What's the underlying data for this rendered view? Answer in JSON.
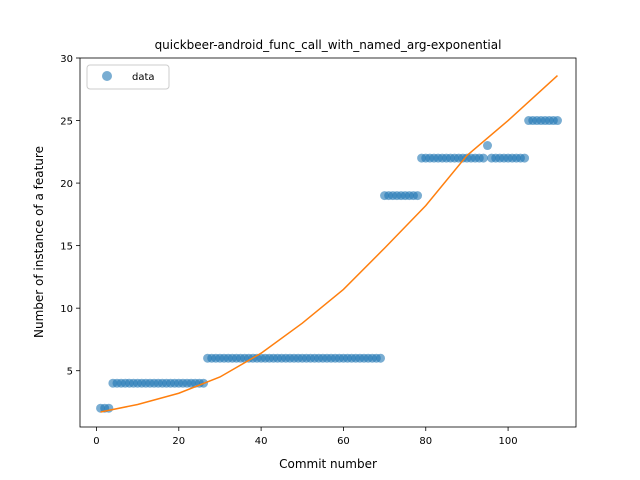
{
  "chart_data": {
    "type": "scatter",
    "title": "quickbeer-android_func_call_with_named_arg-exponential",
    "xlabel": "Commit number",
    "ylabel": "Number of instance of a feature",
    "xlim": [
      -4,
      116.5
    ],
    "ylim": [
      0.5,
      30
    ],
    "xticks": [
      0,
      20,
      40,
      60,
      80,
      100
    ],
    "yticks": [
      5,
      10,
      15,
      20,
      25,
      30
    ],
    "legend": {
      "position": "top-left",
      "entries": [
        "data"
      ]
    },
    "colors": {
      "points": "#1f77b4",
      "fit": "#ff7f0e"
    },
    "series": [
      {
        "name": "data",
        "kind": "scatter",
        "points": [
          [
            1,
            2
          ],
          [
            2,
            2
          ],
          [
            3,
            2
          ],
          [
            4,
            4
          ],
          [
            5,
            4
          ],
          [
            6,
            4
          ],
          [
            7,
            4
          ],
          [
            8,
            4
          ],
          [
            9,
            4
          ],
          [
            10,
            4
          ],
          [
            11,
            4
          ],
          [
            12,
            4
          ],
          [
            13,
            4
          ],
          [
            14,
            4
          ],
          [
            15,
            4
          ],
          [
            16,
            4
          ],
          [
            17,
            4
          ],
          [
            18,
            4
          ],
          [
            19,
            4
          ],
          [
            20,
            4
          ],
          [
            21,
            4
          ],
          [
            22,
            4
          ],
          [
            23,
            4
          ],
          [
            24,
            4
          ],
          [
            25,
            4
          ],
          [
            26,
            4
          ],
          [
            27,
            6
          ],
          [
            28,
            6
          ],
          [
            29,
            6
          ],
          [
            30,
            6
          ],
          [
            31,
            6
          ],
          [
            32,
            6
          ],
          [
            33,
            6
          ],
          [
            34,
            6
          ],
          [
            35,
            6
          ],
          [
            36,
            6
          ],
          [
            37,
            6
          ],
          [
            38,
            6
          ],
          [
            39,
            6
          ],
          [
            40,
            6
          ],
          [
            41,
            6
          ],
          [
            42,
            6
          ],
          [
            43,
            6
          ],
          [
            44,
            6
          ],
          [
            45,
            6
          ],
          [
            46,
            6
          ],
          [
            47,
            6
          ],
          [
            48,
            6
          ],
          [
            49,
            6
          ],
          [
            50,
            6
          ],
          [
            51,
            6
          ],
          [
            52,
            6
          ],
          [
            53,
            6
          ],
          [
            54,
            6
          ],
          [
            55,
            6
          ],
          [
            56,
            6
          ],
          [
            57,
            6
          ],
          [
            58,
            6
          ],
          [
            59,
            6
          ],
          [
            60,
            6
          ],
          [
            61,
            6
          ],
          [
            62,
            6
          ],
          [
            63,
            6
          ],
          [
            64,
            6
          ],
          [
            65,
            6
          ],
          [
            66,
            6
          ],
          [
            67,
            6
          ],
          [
            68,
            6
          ],
          [
            69,
            6
          ],
          [
            70,
            19
          ],
          [
            71,
            19
          ],
          [
            72,
            19
          ],
          [
            73,
            19
          ],
          [
            74,
            19
          ],
          [
            75,
            19
          ],
          [
            76,
            19
          ],
          [
            77,
            19
          ],
          [
            78,
            19
          ],
          [
            79,
            22
          ],
          [
            80,
            22
          ],
          [
            81,
            22
          ],
          [
            82,
            22
          ],
          [
            83,
            22
          ],
          [
            84,
            22
          ],
          [
            85,
            22
          ],
          [
            86,
            22
          ],
          [
            87,
            22
          ],
          [
            88,
            22
          ],
          [
            89,
            22
          ],
          [
            90,
            22
          ],
          [
            91,
            22
          ],
          [
            92,
            22
          ],
          [
            93,
            22
          ],
          [
            94,
            22
          ],
          [
            95,
            23
          ],
          [
            96,
            22
          ],
          [
            97,
            22
          ],
          [
            98,
            22
          ],
          [
            99,
            22
          ],
          [
            100,
            22
          ],
          [
            101,
            22
          ],
          [
            102,
            22
          ],
          [
            103,
            22
          ],
          [
            104,
            22
          ],
          [
            105,
            25
          ],
          [
            106,
            25
          ],
          [
            107,
            25
          ],
          [
            108,
            25
          ],
          [
            109,
            25
          ],
          [
            110,
            25
          ],
          [
            111,
            25
          ],
          [
            112,
            25
          ]
        ]
      },
      {
        "kind": "line",
        "points": [
          [
            1,
            1.7
          ],
          [
            10,
            2.3
          ],
          [
            20,
            3.2
          ],
          [
            30,
            4.5
          ],
          [
            40,
            6.4
          ],
          [
            50,
            8.8
          ],
          [
            60,
            11.5
          ],
          [
            70,
            14.8
          ],
          [
            80,
            18.2
          ],
          [
            90,
            22.2
          ],
          [
            100,
            25.0
          ],
          [
            112,
            28.6
          ]
        ]
      }
    ]
  }
}
